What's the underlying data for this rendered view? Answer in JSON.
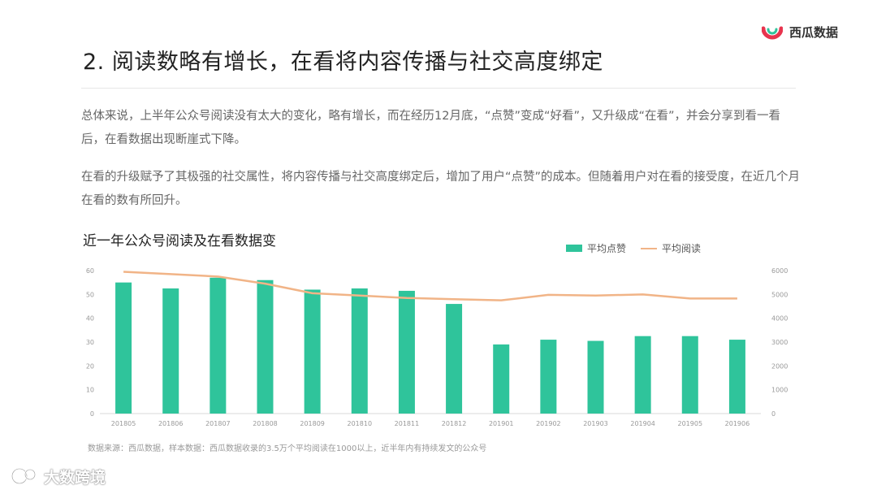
{
  "brand": {
    "name": "西瓜数据",
    "logo_icon": "watermelon-logo-icon",
    "logo_color": "#e8344e"
  },
  "slide": {
    "title": "2. 阅读数略有增长，在看将内容传播与社交高度绑定",
    "paragraph1": "总体来说，上半年公众号阅读没有太大的变化，略有增长，而在经历12月底，“点赞”变成“好看”，又升级成“在看”，并会分享到看一看后，在看数据出现断崖式下降。",
    "paragraph2": "在看的升级赋予了其极强的社交属性，将内容传播与社交高度绑定后，增加了用户“点赞”的成本。但随着用户对在看的接受度，在近几个月在看的数有所回升。",
    "source": "数据来源：西瓜数据，样本数据：西瓜数据收录的3.5万个平均阅读在1000以上，近半年内有持续发文的公众号"
  },
  "watermark": {
    "text": "大数跨境",
    "icon": "chat-bubble-icon"
  },
  "chart_data": {
    "type": "bar",
    "title": "近一年公众号阅读及在看数据变",
    "categories": [
      "201805",
      "201806",
      "201807",
      "201808",
      "201809",
      "201810",
      "201811",
      "201812",
      "201901",
      "201902",
      "201903",
      "201904",
      "201905",
      "201906"
    ],
    "series": [
      {
        "name": "平均点赞",
        "type": "bar",
        "axis": "left",
        "color": "#2fc49b",
        "values": [
          55,
          52.5,
          57,
          56,
          52,
          52.5,
          51.5,
          46,
          29,
          31,
          30.5,
          32.5,
          32.5,
          31
        ]
      },
      {
        "name": "平均阅读",
        "type": "line",
        "axis": "right",
        "color": "#f1b487",
        "values": [
          5950,
          5850,
          5750,
          5450,
          5050,
          4950,
          4850,
          4800,
          4750,
          4980,
          4950,
          5000,
          4830,
          4830
        ]
      }
    ],
    "y_left": {
      "min": 0,
      "max": 60,
      "ticks": [
        0,
        10,
        20,
        30,
        40,
        50,
        60
      ]
    },
    "y_right": {
      "min": 0,
      "max": 6000,
      "ticks": [
        0,
        1000,
        2000,
        3000,
        4000,
        5000,
        6000
      ]
    },
    "grid": false,
    "legend_position": "top-right"
  }
}
